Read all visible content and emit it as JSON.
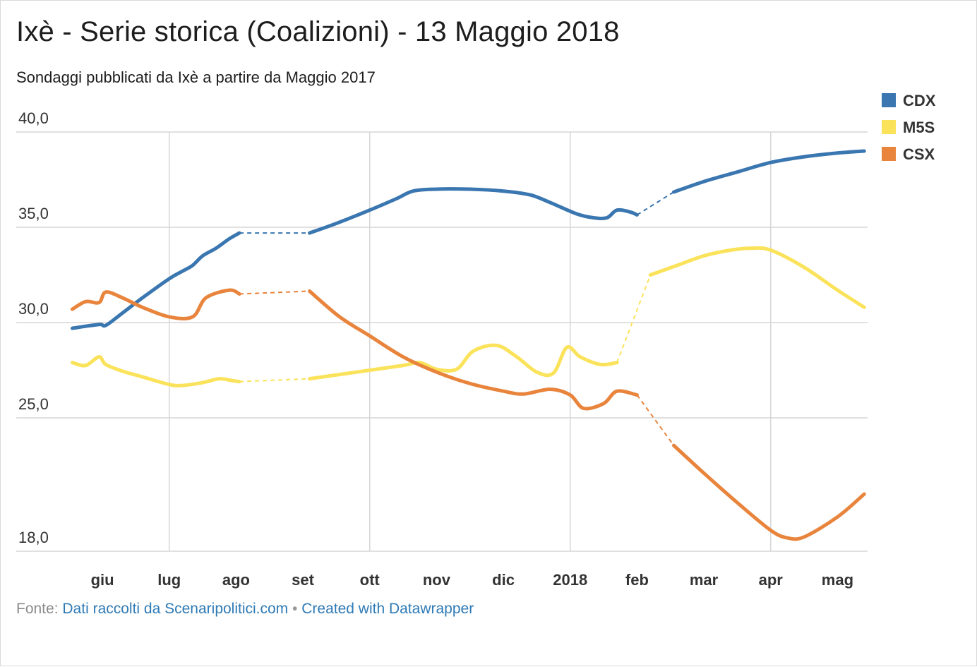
{
  "chart_data": {
    "type": "line",
    "title": "Ixè - Serie storica (Coalizioni) - 13 Maggio 2018",
    "subtitle": "Sondaggi pubblicati da Ixè a partire da Maggio 2017",
    "ylim": [
      18,
      40
    ],
    "y_ticks": [
      {
        "value": 40,
        "label": "40,0"
      },
      {
        "value": 35,
        "label": "35,0"
      },
      {
        "value": 30,
        "label": "30,0"
      },
      {
        "value": 25,
        "label": "25,0"
      },
      {
        "value": 18,
        "label": "18,0"
      }
    ],
    "x_unit": "months since 1 May 2017",
    "xlim": [
      0.45,
      12.45
    ],
    "x_ticks": [
      {
        "value": 1,
        "label": "giu"
      },
      {
        "value": 2,
        "label": "lug"
      },
      {
        "value": 3,
        "label": "ago"
      },
      {
        "value": 4,
        "label": "set"
      },
      {
        "value": 5,
        "label": "ott"
      },
      {
        "value": 6,
        "label": "nov"
      },
      {
        "value": 7,
        "label": "dic"
      },
      {
        "value": 8,
        "label": "2018"
      },
      {
        "value": 9,
        "label": "feb"
      },
      {
        "value": 10,
        "label": "mar"
      },
      {
        "value": 11,
        "label": "apr"
      },
      {
        "value": 12,
        "label": "mag"
      }
    ],
    "vgrid": [
      2,
      5,
      8,
      11
    ],
    "grid": true,
    "legend_position": "top-right",
    "series": [
      {
        "name": "CDX",
        "color": "#3a76b0",
        "segments": [
          {
            "style": "solid",
            "points": [
              [
                0.55,
                29.7
              ],
              [
                0.95,
                29.9
              ],
              [
                1.05,
                29.85
              ],
              [
                1.3,
                30.5
              ],
              [
                1.6,
                31.3
              ],
              [
                2.0,
                32.3
              ],
              [
                2.2,
                32.7
              ],
              [
                2.35,
                33
              ],
              [
                2.5,
                33.5
              ],
              [
                2.7,
                33.9
              ],
              [
                2.9,
                34.4
              ],
              [
                3.05,
                34.7
              ]
            ]
          },
          {
            "style": "dashed",
            "points": [
              [
                3.05,
                34.7
              ],
              [
                4.1,
                34.7
              ]
            ]
          },
          {
            "style": "solid",
            "points": [
              [
                4.1,
                34.7
              ],
              [
                4.5,
                35.2
              ],
              [
                5.0,
                35.9
              ],
              [
                5.4,
                36.5
              ],
              [
                5.65,
                36.9
              ],
              [
                6.0,
                37
              ],
              [
                6.5,
                37
              ],
              [
                7.0,
                36.9
              ],
              [
                7.4,
                36.7
              ],
              [
                7.7,
                36.3
              ],
              [
                8.1,
                35.7
              ],
              [
                8.35,
                35.5
              ],
              [
                8.55,
                35.5
              ],
              [
                8.7,
                35.9
              ],
              [
                8.9,
                35.8
              ],
              [
                9.0,
                35.65
              ]
            ]
          },
          {
            "style": "dashed",
            "points": [
              [
                9.0,
                35.65
              ],
              [
                9.55,
                36.85
              ]
            ]
          },
          {
            "style": "solid",
            "points": [
              [
                9.55,
                36.85
              ],
              [
                10.0,
                37.4
              ],
              [
                10.5,
                37.9
              ],
              [
                11.0,
                38.4
              ],
              [
                11.5,
                38.7
              ],
              [
                12.0,
                38.9
              ],
              [
                12.4,
                39
              ]
            ]
          }
        ]
      },
      {
        "name": "M5S",
        "color": "#fae35a",
        "segments": [
          {
            "style": "solid",
            "points": [
              [
                0.55,
                27.9
              ],
              [
                0.75,
                27.75
              ],
              [
                0.95,
                28.2
              ],
              [
                1.05,
                27.8
              ],
              [
                1.3,
                27.45
              ],
              [
                1.6,
                27.15
              ],
              [
                2.0,
                26.75
              ],
              [
                2.2,
                26.7
              ],
              [
                2.5,
                26.85
              ],
              [
                2.75,
                27.05
              ],
              [
                2.95,
                26.95
              ],
              [
                3.05,
                26.9
              ]
            ]
          },
          {
            "style": "dashed",
            "points": [
              [
                3.05,
                26.9
              ],
              [
                4.1,
                27.05
              ]
            ]
          },
          {
            "style": "solid",
            "points": [
              [
                4.1,
                27.05
              ],
              [
                4.5,
                27.25
              ],
              [
                5.0,
                27.5
              ],
              [
                5.5,
                27.75
              ],
              [
                5.75,
                27.9
              ],
              [
                6.0,
                27.55
              ],
              [
                6.3,
                27.55
              ],
              [
                6.55,
                28.5
              ],
              [
                6.9,
                28.8
              ],
              [
                7.2,
                28.2
              ],
              [
                7.5,
                27.4
              ],
              [
                7.75,
                27.35
              ],
              [
                7.95,
                28.7
              ],
              [
                8.15,
                28.2
              ],
              [
                8.45,
                27.8
              ],
              [
                8.7,
                27.9
              ]
            ]
          },
          {
            "style": "dashed",
            "points": [
              [
                8.7,
                27.9
              ],
              [
                9.2,
                32.5
              ]
            ]
          },
          {
            "style": "solid",
            "points": [
              [
                9.2,
                32.5
              ],
              [
                9.6,
                33
              ],
              [
                10.0,
                33.5
              ],
              [
                10.4,
                33.8
              ],
              [
                10.7,
                33.9
              ],
              [
                11.0,
                33.8
              ],
              [
                11.5,
                32.9
              ],
              [
                12.0,
                31.7
              ],
              [
                12.4,
                30.8
              ]
            ]
          }
        ]
      },
      {
        "name": "CSX",
        "color": "#e8843c",
        "segments": [
          {
            "style": "solid",
            "points": [
              [
                0.55,
                30.7
              ],
              [
                0.75,
                31.1
              ],
              [
                0.95,
                31.05
              ],
              [
                1.05,
                31.6
              ],
              [
                1.3,
                31.3
              ],
              [
                1.6,
                30.8
              ],
              [
                2.0,
                30.3
              ],
              [
                2.35,
                30.3
              ],
              [
                2.55,
                31.3
              ],
              [
                2.9,
                31.7
              ],
              [
                3.05,
                31.5
              ]
            ]
          },
          {
            "style": "dashed",
            "points": [
              [
                3.05,
                31.5
              ],
              [
                4.1,
                31.65
              ]
            ]
          },
          {
            "style": "solid",
            "points": [
              [
                4.1,
                31.65
              ],
              [
                4.55,
                30.3
              ],
              [
                5.0,
                29.3
              ],
              [
                5.5,
                28.2
              ],
              [
                6.0,
                27.4
              ],
              [
                6.5,
                26.8
              ],
              [
                7.0,
                26.4
              ],
              [
                7.3,
                26.25
              ],
              [
                7.7,
                26.5
              ],
              [
                8.0,
                26.2
              ],
              [
                8.2,
                25.5
              ],
              [
                8.5,
                25.75
              ],
              [
                8.7,
                26.4
              ],
              [
                9.0,
                26.2
              ]
            ]
          },
          {
            "style": "dashed",
            "points": [
              [
                9.0,
                26.2
              ],
              [
                9.55,
                23.55
              ]
            ]
          },
          {
            "style": "solid",
            "points": [
              [
                9.55,
                23.55
              ],
              [
                10.0,
                22.1
              ],
              [
                10.5,
                20.55
              ],
              [
                11.0,
                19.1
              ],
              [
                11.25,
                18.7
              ],
              [
                11.5,
                18.75
              ],
              [
                12.0,
                19.8
              ],
              [
                12.4,
                21.0
              ]
            ]
          }
        ]
      }
    ]
  },
  "footer": {
    "source_label": "Fonte:",
    "source_link": "Dati raccolti da Scenaripolitici.com",
    "separator": "•",
    "credit_link": "Created with Datawrapper"
  }
}
